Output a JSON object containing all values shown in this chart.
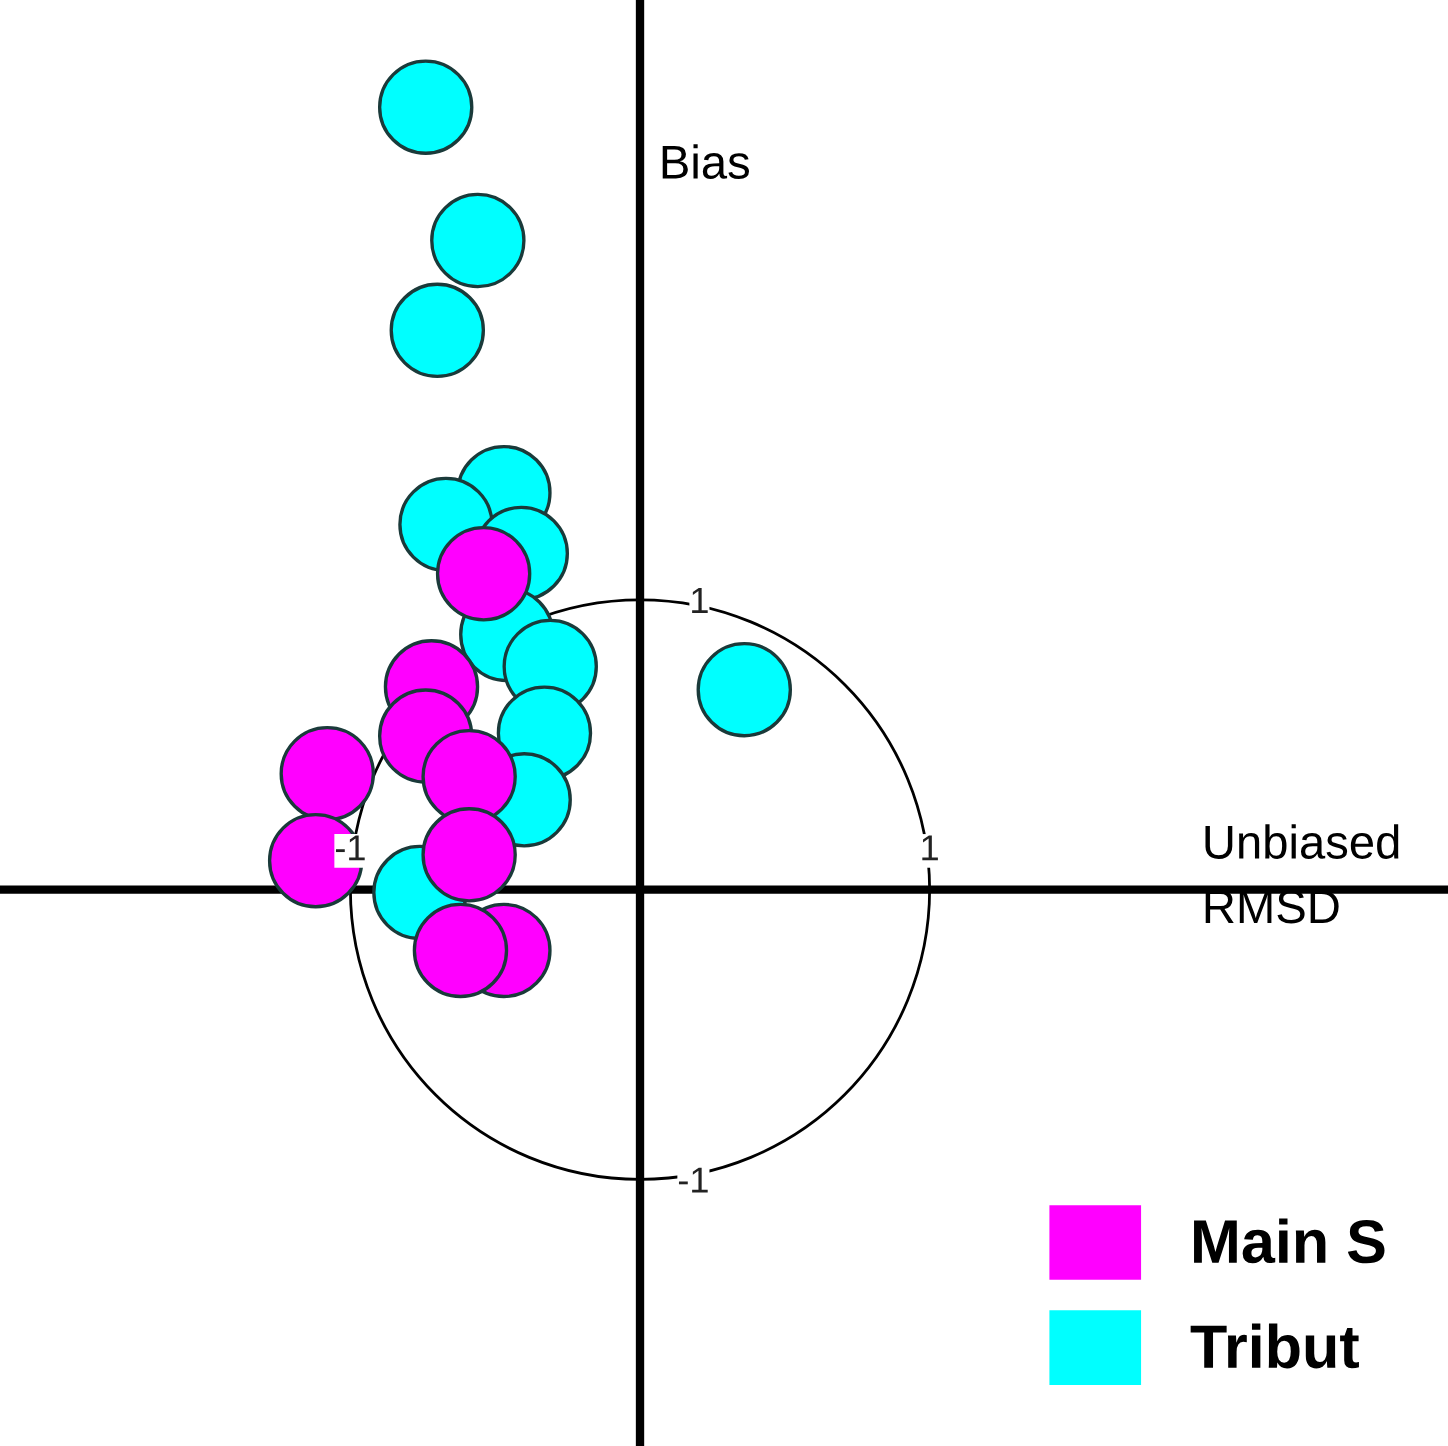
{
  "chart_data": {
    "type": "scatter",
    "xlabel": "Unbiased\nRMSD",
    "ylabel": "Bias",
    "xlim": [
      -2.21,
      2.79
    ],
    "ylim": [
      -1.92,
      3.07
    ],
    "xticks": [
      -1,
      1
    ],
    "yticks": [
      -1,
      1
    ],
    "grid": false,
    "legend": "bottom right",
    "marker": "circle",
    "series": [
      {
        "name": "Tribut",
        "color": "#00ffff",
        "x": [
          -0.74,
          -0.56,
          -0.7,
          -0.47,
          -0.67,
          -0.41,
          -0.46,
          -0.31,
          -0.33,
          -0.4,
          -0.76,
          0.36
        ],
        "values": [
          2.7,
          2.24,
          1.93,
          1.37,
          1.26,
          1.16,
          0.88,
          0.77,
          0.54,
          0.31,
          -0.01,
          0.69
        ]
      },
      {
        "name": "Main S",
        "color": "#ff00ff",
        "x": [
          -0.54,
          -0.72,
          -0.74,
          -0.59,
          -1.08,
          -1.12,
          -0.59,
          -0.47,
          -0.62
        ],
        "values": [
          1.09,
          0.7,
          0.53,
          0.39,
          0.4,
          0.1,
          0.12,
          -0.21,
          -0.21
        ]
      }
    ]
  }
}
